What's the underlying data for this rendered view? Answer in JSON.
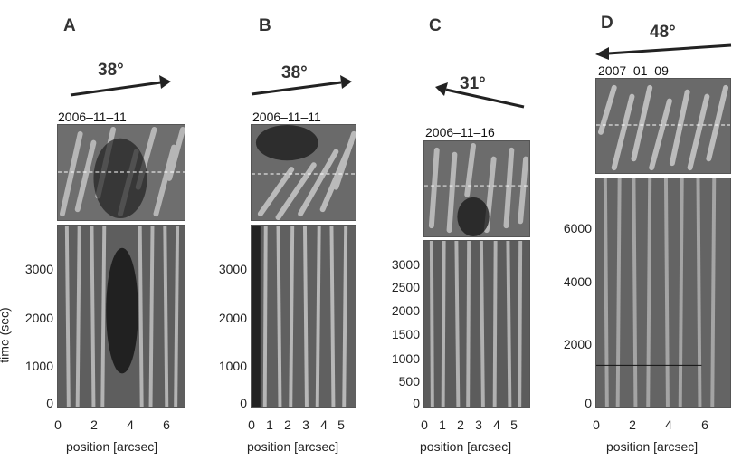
{
  "figure": {
    "panels": [
      {
        "letter": "A",
        "angle": "38°",
        "arrow_direction": "right",
        "date": "2006–11–11",
        "yticks": [
          "3000",
          "2000",
          "1000",
          "0"
        ],
        "xticks": [
          "0",
          "2",
          "4",
          "6"
        ],
        "xlabel": "position [arcsec]",
        "ylabel": "time (sec)"
      },
      {
        "letter": "B",
        "angle": "38°",
        "arrow_direction": "right",
        "date": "2006–11–11",
        "yticks": [
          "3000",
          "2000",
          "1000",
          "0"
        ],
        "xticks": [
          "0",
          "1",
          "2",
          "3",
          "4",
          "5"
        ],
        "xlabel": "position [arcsec]"
      },
      {
        "letter": "C",
        "angle": "31°",
        "arrow_direction": "left",
        "date": "2006–11–16",
        "yticks": [
          "3000",
          "2500",
          "2000",
          "1500",
          "1000",
          "500",
          "0"
        ],
        "xticks": [
          "0",
          "1",
          "2",
          "3",
          "4",
          "5"
        ],
        "xlabel": "position [arcsec]"
      },
      {
        "letter": "D",
        "angle": "48°",
        "arrow_direction": "left",
        "date": "2007–01–09",
        "yticks": [
          "6000",
          "4000",
          "2000",
          "0"
        ],
        "xticks": [
          "0",
          "2",
          "4",
          "6"
        ],
        "xlabel": "position [arcsec]"
      }
    ]
  }
}
